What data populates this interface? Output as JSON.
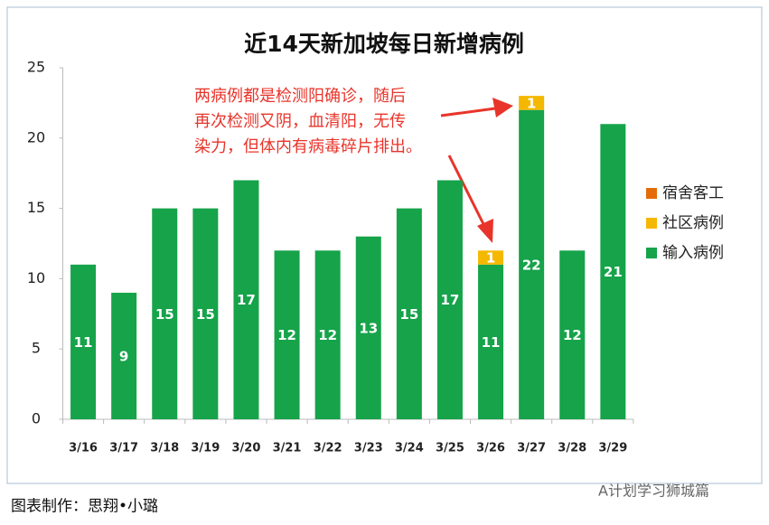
{
  "chart_data": {
    "type": "stacked_bar",
    "title": "近14天新加坡每日新增病例",
    "categories": [
      "3/16",
      "3/17",
      "3/18",
      "3/19",
      "3/20",
      "3/21",
      "3/22",
      "3/23",
      "3/24",
      "3/25",
      "3/26",
      "3/27",
      "3/28",
      "3/29"
    ],
    "series": [
      {
        "name": "宿舍客工",
        "color": "#e36c09",
        "values": [
          0,
          0,
          0,
          0,
          0,
          0,
          0,
          0,
          0,
          0,
          0,
          0,
          0,
          0
        ]
      },
      {
        "name": "社区病例",
        "color": "#f5b800",
        "values": [
          0,
          0,
          0,
          0,
          0,
          0,
          0,
          0,
          0,
          0,
          1,
          1,
          0,
          0
        ]
      },
      {
        "name": "输入病例",
        "color": "#16a34a",
        "values": [
          11,
          9,
          15,
          15,
          17,
          12,
          12,
          13,
          15,
          17,
          11,
          22,
          12,
          21
        ]
      }
    ],
    "ylim": [
      0,
      25
    ],
    "yticks": [
      0,
      5,
      10,
      15,
      20,
      25
    ],
    "grid": false,
    "legend": "right",
    "annotation": [
      "两病例都是检测阳确诊，随后",
      "再次检测又阴，血清阳，无传",
      "染力，但体内有病毒碎片排出。"
    ]
  },
  "caption": "图表制作：思翔•小璐",
  "watermark": "A计划学习狮城篇"
}
